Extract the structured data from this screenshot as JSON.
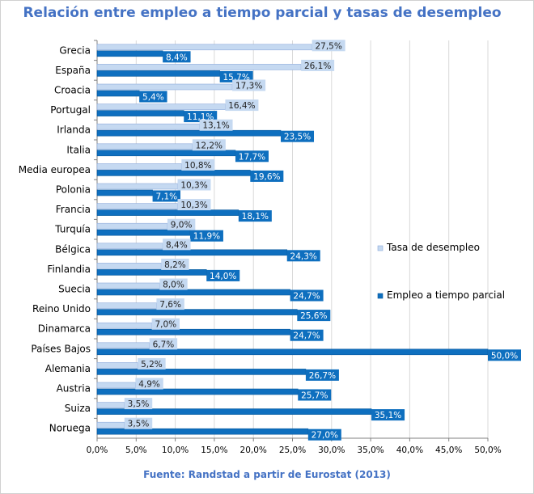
{
  "chart_data": {
    "type": "bar",
    "orientation": "horizontal",
    "title": "Relación entre empleo a tiempo parcial y tasas de desempleo",
    "source": "Fuente: Randstad a partir de Eurostat (2013)",
    "categories": [
      "Grecia",
      "España",
      "Croacia",
      "Portugal",
      "Irlanda",
      "Italia",
      "Media europea",
      "Polonia",
      "Francia",
      "Turquía",
      "Bélgica",
      "Finlandia",
      "Suecia",
      "Reino Unido",
      "Dinamarca",
      "Países Bajos",
      "Alemania",
      "Austria",
      "Suiza",
      "Noruega"
    ],
    "series": [
      {
        "name": "Tasa de desempleo",
        "color": "#c5d9f1",
        "values": [
          27.5,
          26.1,
          17.3,
          16.4,
          13.1,
          12.2,
          10.8,
          10.3,
          10.3,
          9.0,
          8.4,
          8.2,
          8.0,
          7.6,
          7.0,
          6.7,
          5.2,
          4.9,
          3.5,
          3.5
        ],
        "labels": [
          "27,5%",
          "26,1%",
          "17,3%",
          "16,4%",
          "13,1%",
          "12,2%",
          "10,8%",
          "10,3%",
          "10,3%",
          "9,0%",
          "8,4%",
          "8,2%",
          "8,0%",
          "7,6%",
          "7,0%",
          "6,7%",
          "5,2%",
          "4,9%",
          "3,5%",
          "3,5%"
        ]
      },
      {
        "name": "Empleo a tiempo parcial",
        "color": "#0e6fbf",
        "values": [
          8.4,
          15.7,
          5.4,
          11.1,
          23.5,
          17.7,
          19.6,
          7.1,
          18.1,
          11.9,
          24.3,
          14.0,
          24.7,
          25.6,
          24.7,
          50.0,
          26.7,
          25.7,
          35.1,
          27.0
        ],
        "labels": [
          "8,4%",
          "15,7%",
          "5,4%",
          "11,1%",
          "23,5%",
          "17,7%",
          "19,6%",
          "7,1%",
          "18,1%",
          "11,9%",
          "24,3%",
          "14,0%",
          "24,7%",
          "25,6%",
          "24,7%",
          "50,0%",
          "26,7%",
          "25,7%",
          "35,1%",
          "27,0%"
        ]
      }
    ],
    "xlim": [
      0,
      50
    ],
    "xticks": [
      0,
      5,
      10,
      15,
      20,
      25,
      30,
      35,
      40,
      45,
      50
    ],
    "xtick_labels": [
      "0,0%",
      "5,0%",
      "10,0%",
      "15,0%",
      "20,0%",
      "25,0%",
      "30,0%",
      "35,0%",
      "40,0%",
      "45,0%",
      "50,0%"
    ],
    "grid": true,
    "legend_position": "right"
  }
}
